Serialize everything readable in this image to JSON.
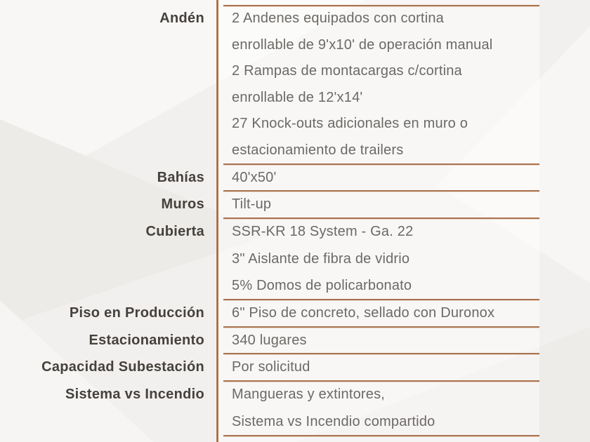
{
  "table": {
    "rows": [
      {
        "label": "Andén",
        "lines": [
          "2 Andenes equipados con cortina",
          "enrollable de 9'x10' de operación manual",
          "2 Rampas de montacargas c/cortina",
          "enrollable de 12'x14'",
          "27 Knock-outs adicionales en muro o",
          "estacionamiento de trailers"
        ]
      },
      {
        "label": "Bahías",
        "lines": [
          "40'x50'"
        ]
      },
      {
        "label": "Muros",
        "lines": [
          "Tilt-up"
        ]
      },
      {
        "label": "Cubierta",
        "lines": [
          "SSR-KR 18 System - Ga. 22",
          "3\" Aislante de fibra de vidrio",
          "5% Domos de policarbonato"
        ]
      },
      {
        "label": "Piso en Producción",
        "lines": [
          "6\" Piso de concreto, sellado con Duronox"
        ]
      },
      {
        "label": "Estacionamiento",
        "lines": [
          "340 lugares"
        ]
      },
      {
        "label": "Capacidad Subestación",
        "lines": [
          "Por solicitud"
        ]
      },
      {
        "label": "Sistema vs Incendio",
        "lines": [
          "Mangueras y extintores,",
          "Sistema vs Incendio compartido"
        ]
      }
    ]
  },
  "colors": {
    "background": "#f2f0ee",
    "accent_line": "#aa7350",
    "accent_line_shadow": "#ead7c9",
    "vertical_divider": "#a5683f",
    "label_text": "#45413d",
    "value_text": "#6c6966"
  }
}
